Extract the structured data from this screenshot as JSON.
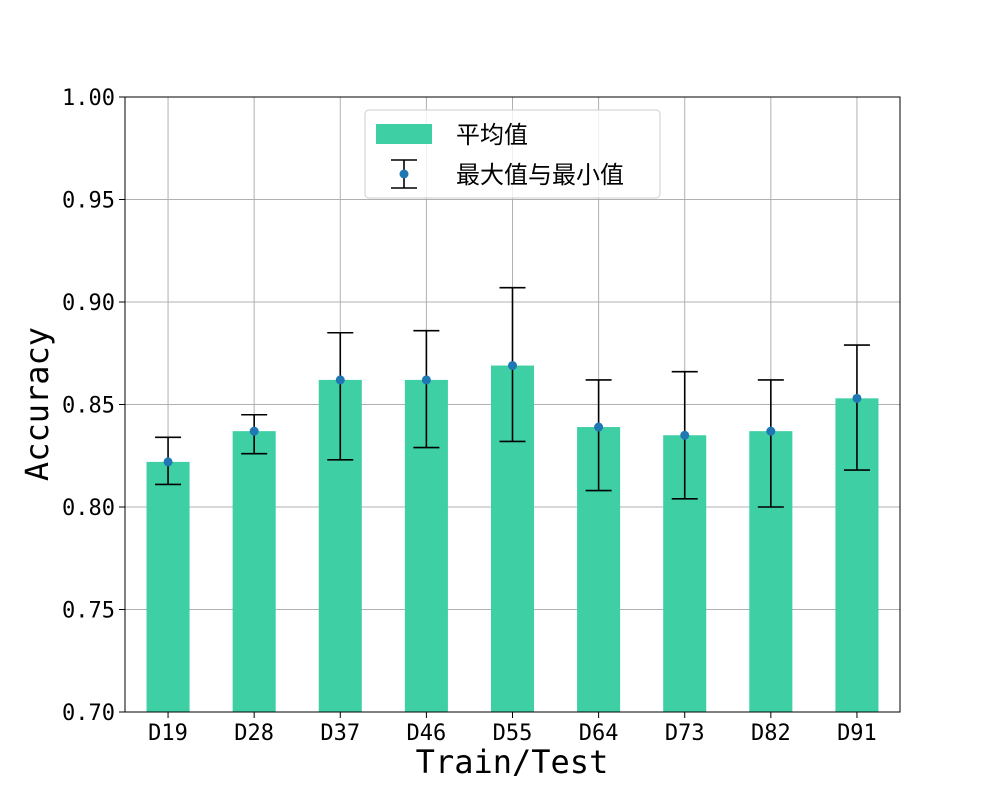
{
  "chart_data": {
    "type": "bar",
    "xlabel": "Train/Test",
    "ylabel": "Accuracy",
    "ylim": [
      0.7,
      1.0
    ],
    "yticks": [
      "0.70",
      "0.75",
      "0.80",
      "0.85",
      "0.90",
      "0.95",
      "1.00"
    ],
    "grid": true,
    "legend_position": "top-center",
    "categories": [
      "D19",
      "D28",
      "D37",
      "D46",
      "D55",
      "D64",
      "D73",
      "D82",
      "D91"
    ],
    "series": [
      {
        "name": "平均值",
        "kind": "bar",
        "color": "#3ecfa5",
        "values": [
          0.822,
          0.837,
          0.862,
          0.862,
          0.869,
          0.839,
          0.835,
          0.837,
          0.853
        ]
      },
      {
        "name": "最大值与最小值",
        "kind": "errorbar",
        "color": "#1f77b4",
        "mid": [
          0.822,
          0.837,
          0.862,
          0.862,
          0.869,
          0.839,
          0.835,
          0.837,
          0.853
        ],
        "max": [
          0.834,
          0.845,
          0.885,
          0.886,
          0.907,
          0.862,
          0.866,
          0.862,
          0.879
        ],
        "min": [
          0.811,
          0.826,
          0.823,
          0.829,
          0.832,
          0.808,
          0.804,
          0.8,
          0.818
        ]
      }
    ]
  }
}
